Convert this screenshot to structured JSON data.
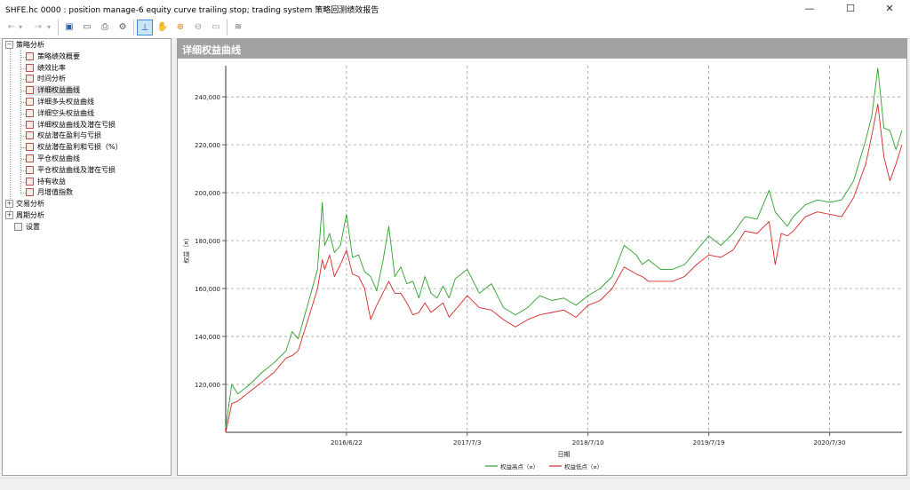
{
  "window": {
    "title": "SHFE.hc 0000 : position manage-6 equity curve trailing stop; trading system 策略回测绩效报告",
    "minimize": "—",
    "maximize": "☐",
    "close": "✕"
  },
  "toolbar": {
    "back": "←",
    "back_menu": "▾",
    "forward": "→",
    "forward_menu": "▾",
    "save": "▣",
    "open": "▭",
    "print": "⎙",
    "settings": "⚙",
    "cursor": "⊥",
    "hand": "✋",
    "zoom_in": "⊕",
    "zoom_out": "⊖",
    "fit": "▭",
    "layers": "≋"
  },
  "tree": {
    "groups": [
      {
        "label": "策略分析",
        "expanded": true,
        "items": [
          "策略绩效概要",
          "绩效比率",
          "时间分析",
          "详细权益曲线",
          "详细多头权益曲线",
          "详细空头权益曲线",
          "详细权益曲线及潜在亏损",
          "权益潜在盈利与亏损",
          "权益潜在盈利和亏损（%）",
          "平仓权益曲线",
          "平仓权益曲线及潜在亏损",
          "持有收益",
          "月增值指数"
        ]
      },
      {
        "label": "交易分析",
        "expanded": false
      },
      {
        "label": "周期分析",
        "expanded": false
      }
    ],
    "settings_label": "设置",
    "expand_symbol": "+",
    "collapse_symbol": "−"
  },
  "panel": {
    "title": "详细权益曲线"
  },
  "chart_data": {
    "type": "line",
    "xlabel": "日期",
    "ylabel": "权益（¤）",
    "x_ticks": [
      "2016/6/22",
      "2017/7/3",
      "2018/7/10",
      "2019/7/19",
      "2020/7/30"
    ],
    "x_tick_positions": [
      1,
      2,
      3,
      4,
      5
    ],
    "xlim": [
      0,
      5.6
    ],
    "ylim": [
      100000,
      253000
    ],
    "y_ticks": [
      120000,
      140000,
      160000,
      180000,
      200000,
      220000,
      240000
    ],
    "y_tick_labels": [
      "120,000",
      "140,000",
      "160,000",
      "180,000",
      "200,000",
      "220,000",
      "240,000"
    ],
    "grid": true,
    "legend_position": "bottom",
    "series": [
      {
        "name": "权益高点（¤）",
        "color": "#2ca02c",
        "x": [
          0,
          0.05,
          0.1,
          0.2,
          0.3,
          0.4,
          0.5,
          0.55,
          0.6,
          0.7,
          0.76,
          0.8,
          0.82,
          0.86,
          0.9,
          0.95,
          1.0,
          1.05,
          1.1,
          1.15,
          1.2,
          1.25,
          1.3,
          1.35,
          1.4,
          1.45,
          1.5,
          1.55,
          1.6,
          1.65,
          1.7,
          1.75,
          1.8,
          1.85,
          1.9,
          2.0,
          2.1,
          2.2,
          2.3,
          2.4,
          2.5,
          2.6,
          2.7,
          2.8,
          2.9,
          3.0,
          3.1,
          3.2,
          3.3,
          3.4,
          3.45,
          3.5,
          3.6,
          3.7,
          3.8,
          3.9,
          4.0,
          4.1,
          4.2,
          4.3,
          4.4,
          4.5,
          4.55,
          4.6,
          4.65,
          4.7,
          4.8,
          4.9,
          5.0,
          5.1,
          5.2,
          5.3,
          5.35,
          5.4,
          5.45,
          5.5,
          5.55,
          5.6
        ],
        "values": [
          102000,
          120000,
          116000,
          120000,
          125000,
          129000,
          134000,
          142000,
          139000,
          157000,
          168000,
          196000,
          178000,
          183000,
          175000,
          178000,
          191000,
          173000,
          174000,
          167000,
          165000,
          159000,
          171000,
          186000,
          165000,
          169000,
          162000,
          163000,
          156000,
          165000,
          158000,
          156000,
          161000,
          156000,
          164000,
          168000,
          158000,
          162000,
          152000,
          149000,
          152000,
          157000,
          155000,
          156000,
          153000,
          157000,
          160000,
          165000,
          178000,
          174000,
          170000,
          172000,
          168000,
          168000,
          170000,
          176000,
          182000,
          178000,
          183000,
          190000,
          189000,
          201000,
          192000,
          189000,
          186000,
          190000,
          195000,
          197000,
          196000,
          197000,
          205000,
          222000,
          232000,
          252000,
          227000,
          226000,
          218000,
          226000
        ]
      },
      {
        "name": "权益低点（¤）",
        "color": "#d62728",
        "x": [
          0,
          0.05,
          0.1,
          0.2,
          0.3,
          0.4,
          0.5,
          0.55,
          0.6,
          0.7,
          0.76,
          0.8,
          0.82,
          0.86,
          0.9,
          0.95,
          1.0,
          1.05,
          1.1,
          1.15,
          1.2,
          1.25,
          1.3,
          1.35,
          1.4,
          1.45,
          1.5,
          1.55,
          1.6,
          1.65,
          1.7,
          1.75,
          1.8,
          1.85,
          1.9,
          2.0,
          2.1,
          2.2,
          2.3,
          2.4,
          2.5,
          2.6,
          2.7,
          2.8,
          2.9,
          3.0,
          3.1,
          3.2,
          3.3,
          3.4,
          3.45,
          3.5,
          3.6,
          3.7,
          3.8,
          3.9,
          4.0,
          4.1,
          4.2,
          4.3,
          4.4,
          4.5,
          4.55,
          4.6,
          4.65,
          4.7,
          4.8,
          4.9,
          5.0,
          5.1,
          5.2,
          5.3,
          5.35,
          5.4,
          5.45,
          5.5,
          5.55,
          5.6
        ],
        "values": [
          100000,
          112000,
          113000,
          117000,
          121000,
          125000,
          131000,
          132000,
          134000,
          150000,
          160000,
          172000,
          168000,
          174000,
          165000,
          170000,
          176000,
          166000,
          165000,
          160000,
          147000,
          153000,
          158000,
          163000,
          158000,
          158000,
          154000,
          149000,
          150000,
          154000,
          150000,
          152000,
          154000,
          148000,
          151000,
          157000,
          152000,
          151000,
          147000,
          144000,
          147000,
          149000,
          150000,
          151000,
          148000,
          153000,
          155000,
          160000,
          169000,
          166000,
          165000,
          163000,
          163000,
          163000,
          165000,
          170000,
          174000,
          173000,
          176000,
          184000,
          183000,
          188000,
          170000,
          183000,
          182000,
          184000,
          190000,
          192000,
          191000,
          190000,
          198000,
          212000,
          224000,
          237000,
          215000,
          205000,
          212000,
          220000
        ]
      }
    ]
  }
}
